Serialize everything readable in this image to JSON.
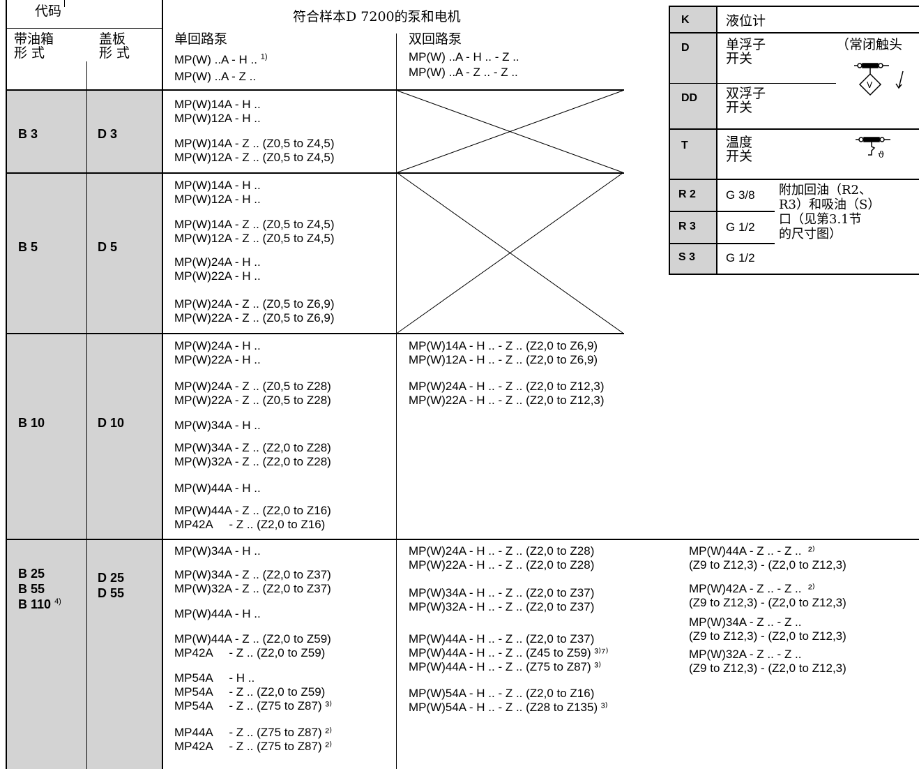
{
  "header": {
    "code": "代码",
    "tank_type": [
      "带油箱",
      "形 式"
    ],
    "cover_type": [
      "盖板",
      "形 式"
    ],
    "motor_pump": "符合样本D 7200的泵和电机",
    "single": "单回路泵",
    "double": "双回路泵",
    "single_lines": [
      "MP(W) ..A - H ..",
      "MP(W) ..A - Z .."
    ],
    "single_sup": "1)",
    "double_lines": [
      "MP(W) ..A - H .. - Z ..",
      "MP(W) ..A - Z .. - Z .."
    ]
  },
  "rows": [
    {
      "tank": "B 3",
      "cover": "D 3",
      "single": [
        [
          "MP(W)14A - H ..",
          "MP(W)12A - H .."
        ],
        [
          "MP(W)14A - Z .. (Z0,5 to Z4,5)",
          "MP(W)12A - Z .. (Z0,5 to Z4,5)"
        ]
      ]
    },
    {
      "tank": "B 5",
      "cover": "D 5",
      "single": [
        [
          "MP(W)14A - H ..",
          "MP(W)12A - H .."
        ],
        [
          "MP(W)14A - Z .. (Z0,5 to Z4,5)",
          "MP(W)12A - Z .. (Z0,5 to Z4,5)"
        ],
        [
          "MP(W)24A - H ..",
          "MP(W)22A - H .."
        ],
        [
          "MP(W)24A - Z .. (Z0,5 to Z6,9)",
          "MP(W)22A - Z .. (Z0,5 to Z6,9)"
        ]
      ]
    },
    {
      "tank": "B 10",
      "cover": "D 10",
      "single": [
        [
          "MP(W)24A - H ..",
          "MP(W)22A - H .."
        ],
        [
          "MP(W)24A - Z .. (Z0,5 to Z28)",
          "MP(W)22A - Z .. (Z0,5 to Z28)"
        ],
        [
          "MP(W)34A - H .."
        ],
        [
          "MP(W)34A - Z .. (Z2,0 to Z28)",
          "MP(W)32A - Z .. (Z2,0 to Z28)"
        ],
        [
          "MP(W)44A - H .."
        ],
        [
          "MP(W)44A - Z .. (Z2,0 to Z16)",
          "MP42A     - Z .. (Z2,0 to Z16)"
        ]
      ],
      "double": [
        [
          "MP(W)14A - H .. - Z .. (Z2,0 to Z6,9)",
          "MP(W)12A - H .. - Z .. (Z2,0 to Z6,9)"
        ],
        [
          "MP(W)24A - H .. - Z .. (Z2,0 to Z12,3)",
          "MP(W)22A - H .. - Z .. (Z2,0 to Z12,3)"
        ]
      ]
    },
    {
      "tank": [
        "B 25",
        "B 55",
        "B 110"
      ],
      "tank_sup": "4)",
      "cover": [
        "D 25",
        "D 55"
      ],
      "single": [
        [
          "MP(W)34A - H .."
        ],
        [
          "MP(W)34A - Z .. (Z2,0 to Z37)",
          "MP(W)32A - Z .. (Z2,0 to Z37)"
        ],
        [
          "MP(W)44A - H .."
        ],
        [
          "MP(W)44A - Z .. (Z2,0 to Z59)",
          "MP42A     - Z .. (Z2,0 to Z59)"
        ],
        [
          "MP54A     - H ..",
          "MP54A     - Z .. (Z2,0 to Z59)",
          "MP54A     - Z .. (Z75 to Z87) ³⁾"
        ],
        [
          "MP44A     - Z .. (Z75 to Z87) ²⁾",
          "MP42A     - Z .. (Z75 to Z87) ²⁾"
        ]
      ],
      "double": [
        [
          "MP(W)24A - H .. - Z .. (Z2,0 to Z28)",
          "MP(W)22A - H .. - Z .. (Z2,0 to Z28)"
        ],
        [
          "MP(W)34A - H .. - Z .. (Z2,0 to Z37)",
          "MP(W)32A - H .. - Z .. (Z2,0 to Z37)"
        ],
        [
          "MP(W)44A - H .. - Z .. (Z2,0 to Z37)",
          "MP(W)44A - H .. - Z .. (Z45 to Z59) ³⁾⁷⁾",
          "MP(W)44A - H .. - Z .. (Z75 to Z87) ³⁾"
        ],
        [
          "MP(W)54A - H .. - Z .. (Z2,0 to Z16)",
          "MP(W)54A - H .. - Z .. (Z28 to Z135) ³⁾"
        ]
      ],
      "double2": [
        "MP(W)44A - Z .. - Z ..  ²⁾",
        "(Z9 to Z12,3) - (Z2,0 to Z12,3)",
        "MP(W)42A - Z .. - Z ..  ²⁾",
        "(Z9 to Z12,3) - (Z2,0 to Z12,3)",
        "MP(W)34A - Z .. - Z ..",
        "(Z9 to Z12,3) - (Z2,0 to Z12,3)",
        "MP(W)32A - Z .. - Z ..",
        "(Z9 to Z12,3) - (Z2,0 to Z12,3)"
      ]
    }
  ],
  "legend": [
    {
      "code": "K",
      "text": "液位计"
    },
    {
      "code": "D",
      "text": "单浮子\n开关",
      "note": "（常闭触头"
    },
    {
      "code": "DD",
      "text": "双浮子\n开关"
    },
    {
      "code": "T",
      "text": "温度\n开关"
    },
    {
      "code": "R 2",
      "size": "G 3/8"
    },
    {
      "code": "R 3",
      "size": "G 1/2"
    },
    {
      "code": "S 3",
      "size": "G 1/2"
    }
  ],
  "legend_ports_note": "附加回油（R2、\nR3）和吸油（S）\n口（见第3.1节\n的尺寸图）"
}
